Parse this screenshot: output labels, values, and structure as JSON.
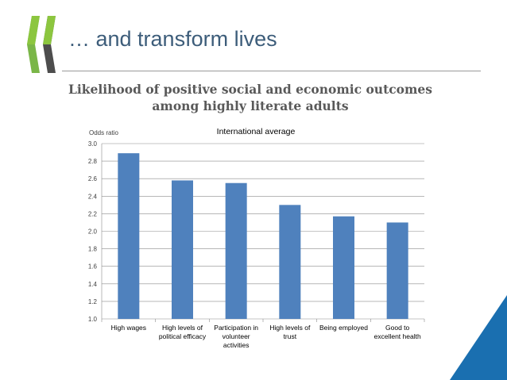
{
  "slide": {
    "title": "… and transform lives"
  },
  "icons": {
    "logo": "oecd-chevron-logo",
    "corner": "blue-corner-triangle"
  },
  "colors": {
    "bar": "#4f81bd",
    "title": "#3d5d7a",
    "chart_title": "#595959",
    "corner": "#1a6fb0"
  },
  "chart_data": {
    "type": "bar",
    "title": "Likelihood of positive social and economic outcomes among highly literate adults",
    "title_lines": [
      "Likelihood of positive social and economic outcomes",
      "among highly literate adults"
    ],
    "subtitle": "International average",
    "ylabel": "Odds ratio",
    "xlabel": "",
    "ylim": [
      1.0,
      3.0
    ],
    "ytick_step": 0.2,
    "grid": true,
    "categories": [
      "High wages",
      "High levels of political efficacy",
      "Participation in volunteer activities",
      "High levels of trust",
      "Being employed",
      "Good to excellent health"
    ],
    "category_lines": [
      [
        "High wages"
      ],
      [
        "High levels of",
        "political efficacy"
      ],
      [
        "Participation in",
        "volunteer",
        "activities"
      ],
      [
        "High levels of",
        "trust"
      ],
      [
        "Being employed"
      ],
      [
        "Good to",
        "excellent health"
      ]
    ],
    "values": [
      2.89,
      2.58,
      2.55,
      2.3,
      2.17,
      2.1
    ]
  }
}
